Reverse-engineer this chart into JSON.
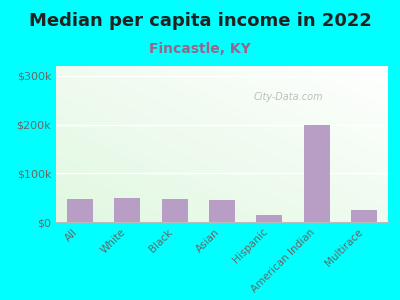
{
  "title": "Median per capita income in 2022",
  "subtitle": "Fincastle, KY",
  "categories": [
    "All",
    "White",
    "Black",
    "Asian",
    "Hispanic",
    "American Indian",
    "Multirace"
  ],
  "values": [
    47000,
    50000,
    48000,
    45000,
    15000,
    200000,
    25000
  ],
  "bar_color": "#b89ec4",
  "title_fontsize": 13,
  "subtitle_fontsize": 10,
  "subtitle_color": "#996688",
  "title_color": "#222222",
  "background_outer": "#00ffff",
  "ylim": [
    0,
    320000
  ],
  "yticks": [
    0,
    100000,
    200000,
    300000
  ],
  "ytick_labels": [
    "$0",
    "$100k",
    "$200k",
    "$300k"
  ],
  "tick_label_color": "#666666",
  "watermark": "City-Data.com",
  "grid_color": "#dddddd"
}
